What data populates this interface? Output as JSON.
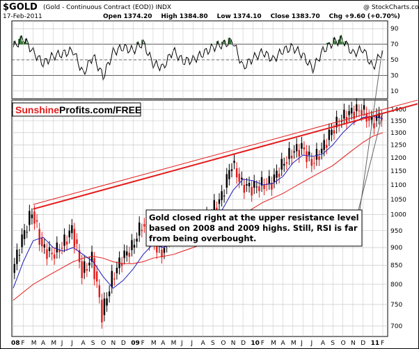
{
  "header": {
    "symbol": "$GOLD",
    "name": "(Gold - Continuous Contract (EOD))",
    "exchange": "INDX",
    "date": "17-Feb-2011",
    "open_label": "Open",
    "open": "1374.20",
    "high_label": "High",
    "high": "1384.80",
    "low_label": "Low",
    "low": "1374.10",
    "close_label": "Close",
    "close": "1383.70",
    "chg_label": "Chg",
    "chg": "+9.60 (+0.70%)",
    "watermark": "@ StockCharts.com"
  },
  "branding": {
    "part1": "Sunshine",
    "part2": "Profits.com/FREE",
    "color1": "#e41a1a",
    "color2": "#000000"
  },
  "annotation": {
    "lines": [
      "Gold closed right at the upper resistance level",
      "based on 2008 and 2009 highs. Still, RSI is far",
      "from being overbought."
    ]
  },
  "colors": {
    "up_candle": "#000000",
    "down_candle": "#e41a1a",
    "ma_short": "#1a1ab8",
    "ma_long": "#e41a1a",
    "resistance": "#e41a1a",
    "rsi_line": "#000000",
    "rsi_overbought_fill": "#3a7a3a",
    "grid": "#bfbfbf"
  },
  "chart_data": [
    {
      "type": "line",
      "name": "RSI",
      "y_ticks": [
        90,
        70,
        50,
        30,
        10
      ],
      "ylim": [
        0,
        100
      ],
      "reference_lines": [
        70,
        50,
        30
      ],
      "x": [
        "2008-01",
        "2008-02",
        "2008-03",
        "2008-04",
        "2008-05",
        "2008-06",
        "2008-07",
        "2008-08",
        "2008-09",
        "2008-10",
        "2008-11",
        "2008-12",
        "2009-01",
        "2009-02",
        "2009-03",
        "2009-04",
        "2009-05",
        "2009-06",
        "2009-07",
        "2009-08",
        "2009-09",
        "2009-10",
        "2009-11",
        "2009-12",
        "2010-01",
        "2010-02",
        "2010-03",
        "2010-04",
        "2010-05",
        "2010-06",
        "2010-07",
        "2010-08",
        "2010-09",
        "2010-10",
        "2010-11",
        "2010-12",
        "2011-01",
        "2011-02"
      ],
      "values": [
        66,
        78,
        60,
        45,
        55,
        58,
        62,
        32,
        55,
        28,
        60,
        66,
        62,
        72,
        45,
        40,
        62,
        48,
        50,
        58,
        66,
        70,
        74,
        40,
        52,
        60,
        50,
        62,
        66,
        56,
        38,
        62,
        72,
        76,
        58,
        64,
        40,
        62
      ]
    },
    {
      "type": "line",
      "name": "$GOLD",
      "y_ticks": [
        1400,
        1350,
        1300,
        1250,
        1200,
        1150,
        1100,
        1050,
        1000,
        950,
        900,
        850,
        800,
        750,
        700
      ],
      "ylim": [
        680,
        1430
      ],
      "log_scale": true,
      "x_tick_labels": [
        "08",
        "F",
        "M",
        "A",
        "M",
        "J",
        "J",
        "A",
        "S",
        "O",
        "N",
        "D",
        "09",
        "F",
        "M",
        "A",
        "M",
        "J",
        "J",
        "A",
        "S",
        "O",
        "N",
        "D",
        "10",
        "F",
        "M",
        "A",
        "M",
        "J",
        "J",
        "A",
        "S",
        "O",
        "N",
        "D",
        "11",
        "F"
      ],
      "x": [
        "2008-01",
        "2008-02",
        "2008-03",
        "2008-04",
        "2008-05",
        "2008-06",
        "2008-07",
        "2008-08",
        "2008-09",
        "2008-10",
        "2008-11",
        "2008-12",
        "2009-01",
        "2009-02",
        "2009-03",
        "2009-04",
        "2009-05",
        "2009-06",
        "2009-07",
        "2009-08",
        "2009-09",
        "2009-10",
        "2009-11",
        "2009-12",
        "2010-01",
        "2010-02",
        "2010-03",
        "2010-04",
        "2010-05",
        "2010-06",
        "2010-07",
        "2010-08",
        "2010-09",
        "2010-10",
        "2010-11",
        "2010-12",
        "2011-01",
        "2011-02"
      ],
      "series": [
        {
          "name": "$GOLD",
          "values": [
            830,
            925,
            1010,
            900,
            880,
            905,
            955,
            830,
            870,
            725,
            815,
            870,
            900,
            970,
            920,
            885,
            960,
            935,
            950,
            955,
            1010,
            1060,
            1180,
            1100,
            1090,
            1100,
            1110,
            1170,
            1220,
            1240,
            1180,
            1230,
            1310,
            1360,
            1390,
            1400,
            1340,
            1383.7
          ]
        },
        {
          "values": [
            790,
            860,
            920,
            930,
            900,
            890,
            900,
            880,
            860,
            820,
            790,
            810,
            840,
            880,
            910,
            900,
            910,
            930,
            935,
            945,
            970,
            1020,
            1080,
            1120,
            1115,
            1100,
            1105,
            1130,
            1180,
            1210,
            1205,
            1215,
            1250,
            1300,
            1340,
            1365,
            1370,
            1360
          ]
        },
        {
          "values": [
            760,
            780,
            800,
            815,
            830,
            845,
            860,
            870,
            875,
            870,
            860,
            855,
            855,
            860,
            870,
            875,
            880,
            890,
            900,
            910,
            925,
            945,
            970,
            1000,
            1020,
            1040,
            1055,
            1070,
            1090,
            1110,
            1130,
            1150,
            1170,
            1200,
            1230,
            1260,
            1285,
            1300
          ]
        }
      ],
      "resistance_lines": [
        {
          "from": [
            "2008-03",
            1033
          ],
          "to": [
            "2011-02",
            1400
          ]
        },
        {
          "from": [
            "2008-03",
            1018
          ],
          "to": [
            "2011-02",
            1383
          ]
        }
      ]
    }
  ]
}
